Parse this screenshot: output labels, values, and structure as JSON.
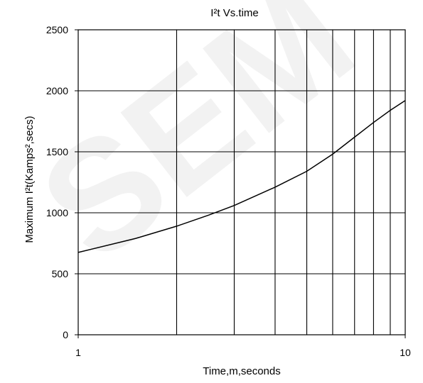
{
  "watermark": {
    "text": "SEM",
    "color": "#f2f2f2"
  },
  "chart_data": {
    "type": "line",
    "title": "I²t  Vs.time",
    "xlabel": "Time,m,seconds",
    "ylabel": "Maximum  I²t(Kamps²,secs)",
    "x_scale": "log",
    "xlim": [
      1,
      10
    ],
    "ylim": [
      0,
      2500
    ],
    "x_tick_labels": [
      "1",
      "10"
    ],
    "y_ticks": [
      0,
      500,
      1000,
      1500,
      2000,
      2500
    ],
    "y_tick_labels": [
      "0",
      "500",
      "1000",
      "1500",
      "2000",
      "2500"
    ],
    "grid": true,
    "line_color": "#000000",
    "series": [
      {
        "x": [
          1,
          1.5,
          2,
          2.5,
          3,
          4,
          5,
          6,
          7,
          8,
          9,
          10
        ],
        "values": [
          675,
          790,
          890,
          980,
          1060,
          1210,
          1340,
          1480,
          1620,
          1740,
          1840,
          1920
        ]
      }
    ]
  }
}
